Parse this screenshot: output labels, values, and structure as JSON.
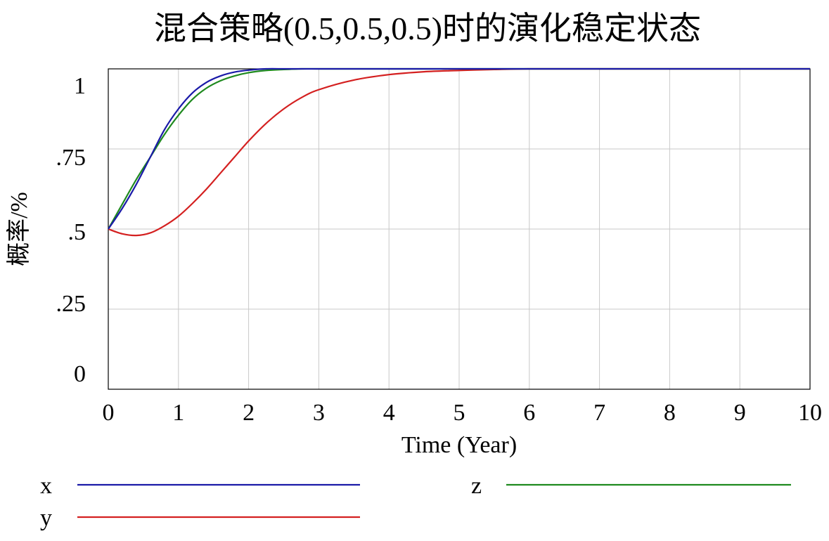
{
  "chart_data": {
    "type": "line",
    "title": "混合策略(0.5,0.5,0.5)时的演化稳定状态",
    "xlabel": "Time (Year)",
    "ylabel": "概率/%",
    "xlim": [
      0,
      10
    ],
    "ylim": [
      -0.0,
      1.0
    ],
    "x_ticks": [
      0,
      1,
      2,
      3,
      4,
      5,
      6,
      7,
      8,
      9,
      10
    ],
    "x_tick_labels": [
      "0",
      "1",
      "2",
      "3",
      "4",
      "5",
      "6",
      "7",
      "8",
      "9",
      "10"
    ],
    "y_ticks": [
      0,
      0.25,
      0.5,
      0.75,
      1
    ],
    "y_tick_labels": [
      "0",
      ".25",
      ".5",
      ".75",
      "1"
    ],
    "grid": true,
    "legend_placement": "bottom",
    "x": [
      0,
      0.2,
      0.4,
      0.6,
      0.8,
      1.0,
      1.2,
      1.4,
      1.6,
      1.8,
      2.0,
      2.25,
      2.5,
      2.75,
      3.0,
      3.5,
      4.0,
      4.5,
      5.0,
      5.5,
      6.0,
      7.0,
      8.0,
      9.0,
      10.0
    ],
    "series": [
      {
        "name": "x",
        "color": "#1a1aa8",
        "values": [
          0.5,
          0.565,
          0.64,
          0.725,
          0.81,
          0.875,
          0.925,
          0.958,
          0.978,
          0.99,
          0.996,
          1.0,
          1.0,
          1.0,
          1.0,
          1.0,
          1.0,
          1.0,
          1.0,
          1.0,
          1.0,
          1.0,
          1.0,
          1.0,
          1.0
        ]
      },
      {
        "name": "y",
        "color": "#d42020",
        "values": [
          0.5,
          0.485,
          0.48,
          0.488,
          0.51,
          0.54,
          0.58,
          0.625,
          0.675,
          0.725,
          0.775,
          0.83,
          0.875,
          0.91,
          0.935,
          0.965,
          0.982,
          0.991,
          0.995,
          0.998,
          1.0,
          1.0,
          1.0,
          1.0,
          1.0
        ]
      },
      {
        "name": "z",
        "color": "#1f8a1f",
        "values": [
          0.5,
          0.578,
          0.655,
          0.725,
          0.795,
          0.855,
          0.905,
          0.94,
          0.963,
          0.978,
          0.988,
          0.995,
          0.998,
          1.0,
          1.0,
          1.0,
          1.0,
          1.0,
          1.0,
          1.0,
          1.0,
          1.0,
          1.0,
          1.0,
          1.0
        ]
      }
    ],
    "legend": [
      {
        "name": "x",
        "series": 0,
        "col": 0,
        "row": 0
      },
      {
        "name": "z",
        "series": 2,
        "col": 1,
        "row": 0
      },
      {
        "name": "y",
        "series": 1,
        "col": 0,
        "row": 1
      }
    ]
  }
}
